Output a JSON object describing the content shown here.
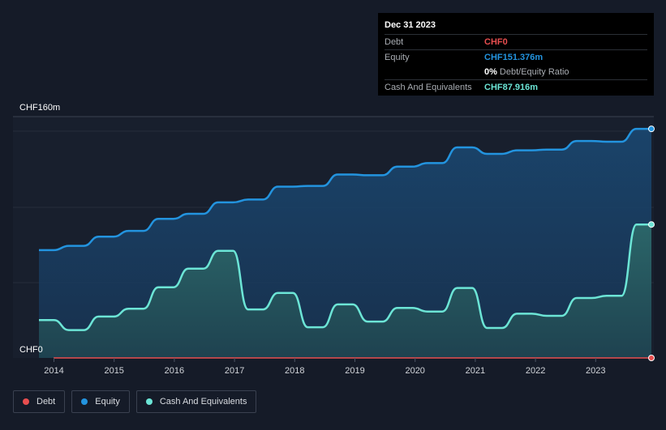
{
  "tooltip": {
    "date": "Dec 31 2023",
    "debt_label": "Debt",
    "debt_value": "CHF0",
    "equity_label": "Equity",
    "equity_value": "CHF151.376m",
    "ratio_value": "0%",
    "ratio_label": "Debt/Equity Ratio",
    "cash_label": "Cash And Equivalents",
    "cash_value": "CHF87.916m"
  },
  "legend": {
    "debt": "Debt",
    "equity": "Equity",
    "cash": "Cash And Equivalents"
  },
  "colors": {
    "background": "#151b28",
    "debt": "#e84e4f",
    "equity": "#2394df",
    "cash": "#6ce5d6"
  },
  "chart_data": {
    "type": "area",
    "ylim": [
      0,
      160
    ],
    "y_ticks": [
      {
        "value": 160,
        "label": "CHF160m"
      },
      {
        "value": 0,
        "label": "CHF0"
      }
    ],
    "x_ticks": [
      "2014",
      "2015",
      "2016",
      "2017",
      "2018",
      "2019",
      "2020",
      "2021",
      "2022",
      "2023"
    ],
    "x_range": [
      2013.75,
      2024.0
    ],
    "grid": true,
    "series": [
      {
        "name": "Equity",
        "color": "#2394df",
        "points": [
          [
            2013.75,
            75.5
          ],
          [
            2014.0,
            75.5
          ],
          [
            2014.25,
            78.5
          ],
          [
            2014.5,
            78.5
          ],
          [
            2014.75,
            85
          ],
          [
            2015.0,
            85
          ],
          [
            2015.25,
            89
          ],
          [
            2015.5,
            89
          ],
          [
            2015.75,
            97.5
          ],
          [
            2016.0,
            97.5
          ],
          [
            2016.25,
            101
          ],
          [
            2016.5,
            101
          ],
          [
            2016.75,
            109
          ],
          [
            2017.0,
            109
          ],
          [
            2017.25,
            111
          ],
          [
            2017.5,
            111
          ],
          [
            2017.75,
            120
          ],
          [
            2018.0,
            120
          ],
          [
            2018.25,
            120.5
          ],
          [
            2018.5,
            120.5
          ],
          [
            2018.75,
            128.5
          ],
          [
            2019.0,
            128.5
          ],
          [
            2019.25,
            128
          ],
          [
            2019.5,
            128
          ],
          [
            2019.75,
            134
          ],
          [
            2020.0,
            134
          ],
          [
            2020.25,
            136.5
          ],
          [
            2020.5,
            136.5
          ],
          [
            2020.75,
            147.5
          ],
          [
            2021.0,
            147.5
          ],
          [
            2021.25,
            143
          ],
          [
            2021.5,
            143
          ],
          [
            2021.75,
            145.5
          ],
          [
            2022.0,
            145.5
          ],
          [
            2022.25,
            146
          ],
          [
            2022.5,
            146
          ],
          [
            2022.75,
            152
          ],
          [
            2023.0,
            152
          ],
          [
            2023.25,
            151.5
          ],
          [
            2023.5,
            151.5
          ],
          [
            2023.75,
            160.5
          ],
          [
            2024.0,
            160.5
          ]
        ]
      },
      {
        "name": "Cash And Equivalents",
        "color": "#6ce5d6",
        "points": [
          [
            2013.75,
            26.5
          ],
          [
            2014.0,
            26.5
          ],
          [
            2014.25,
            19.5
          ],
          [
            2014.5,
            19.5
          ],
          [
            2014.75,
            29
          ],
          [
            2015.0,
            29
          ],
          [
            2015.25,
            34.5
          ],
          [
            2015.5,
            34.5
          ],
          [
            2015.75,
            49.5
          ],
          [
            2016.0,
            49.5
          ],
          [
            2016.25,
            62.5
          ],
          [
            2016.5,
            62.5
          ],
          [
            2016.75,
            75
          ],
          [
            2017.0,
            75
          ],
          [
            2017.25,
            34
          ],
          [
            2017.5,
            34
          ],
          [
            2017.75,
            45.5
          ],
          [
            2018.0,
            45.5
          ],
          [
            2018.25,
            21.5
          ],
          [
            2018.5,
            21.5
          ],
          [
            2018.75,
            37.5
          ],
          [
            2019.0,
            37.5
          ],
          [
            2019.25,
            25.5
          ],
          [
            2019.5,
            25.5
          ],
          [
            2019.75,
            35
          ],
          [
            2020.0,
            35
          ],
          [
            2020.25,
            32.5
          ],
          [
            2020.5,
            32.5
          ],
          [
            2020.75,
            49
          ],
          [
            2021.0,
            49
          ],
          [
            2021.25,
            21
          ],
          [
            2021.5,
            21
          ],
          [
            2021.75,
            31
          ],
          [
            2022.0,
            31
          ],
          [
            2022.25,
            29.5
          ],
          [
            2022.5,
            29.5
          ],
          [
            2022.75,
            42
          ],
          [
            2023.0,
            42
          ],
          [
            2023.25,
            43.5
          ],
          [
            2023.5,
            43.5
          ],
          [
            2023.75,
            93.5
          ],
          [
            2024.0,
            93.5
          ]
        ]
      },
      {
        "name": "Debt",
        "color": "#e84e4f",
        "points": [
          [
            2013.75,
            0
          ],
          [
            2024.0,
            0
          ]
        ]
      }
    ]
  }
}
